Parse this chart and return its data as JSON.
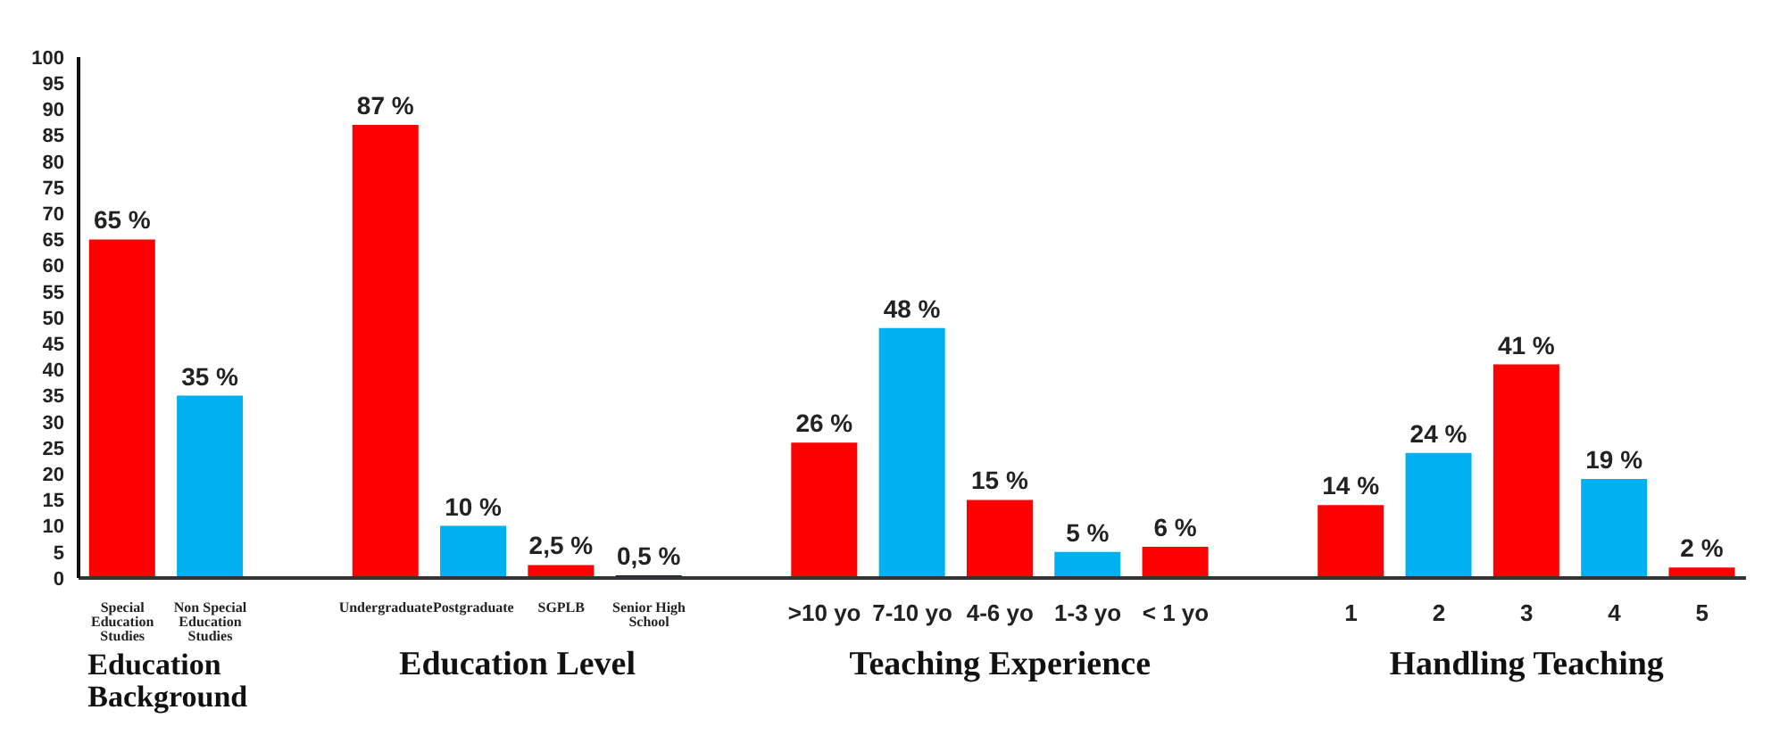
{
  "chart_data": {
    "type": "bar",
    "categories": [
      "Special Education Studies",
      "Non Special Education Studies",
      null,
      "Undergraduate",
      "Postgraduate",
      "SGPLB",
      "Senior High School",
      null,
      ">10 yo",
      "7-10 yo",
      "4-6 yo",
      "1-3 yo",
      "< 1 yo",
      null,
      "1",
      "2",
      "3",
      "4",
      "5"
    ],
    "values": [
      65,
      35,
      null,
      87,
      10,
      2.5,
      0.5,
      null,
      26,
      48,
      15,
      5,
      6,
      null,
      14,
      24,
      41,
      19,
      2
    ],
    "value_labels": [
      "65 %",
      "35 %",
      null,
      "87 %",
      "10 %",
      "2,5 %",
      "0,5 %",
      null,
      "26 %",
      "48 %",
      "15 %",
      "5 %",
      "6 %",
      null,
      "14 %",
      "24 %",
      "41 %",
      "19 %",
      "2 %"
    ],
    "colors": [
      "#ff0000",
      "#00b0f0",
      null,
      "#ff0000",
      "#00b0f0",
      "#ff0000",
      "#0b1a33",
      null,
      "#ff0000",
      "#00b0f0",
      "#ff0000",
      "#00b0f0",
      "#ff0000",
      null,
      "#ff0000",
      "#00b0f0",
      "#ff0000",
      "#00b0f0",
      "#ff0000"
    ],
    "ylim": [
      0,
      100
    ],
    "yticks": [
      0,
      5,
      10,
      15,
      20,
      25,
      30,
      35,
      40,
      45,
      50,
      55,
      60,
      65,
      70,
      75,
      80,
      85,
      90,
      95,
      100
    ],
    "grid": false,
    "legend": false,
    "annotations": [
      "Education Background",
      "Education Level",
      "Teaching Experience",
      "Handling Teaching"
    ]
  }
}
